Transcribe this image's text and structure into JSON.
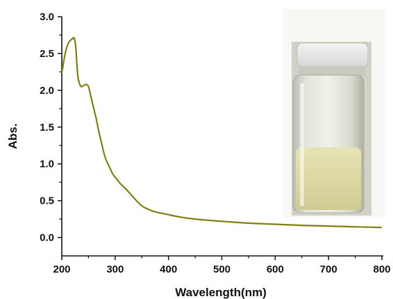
{
  "chart_data": {
    "type": "line",
    "title": "",
    "xlabel": "Wavelength(nm)",
    "ylabel": "Abs.",
    "xlim": [
      200,
      800
    ],
    "ylim": [
      -0.25,
      3.0
    ],
    "x_ticks": [
      "200",
      "300",
      "400",
      "500",
      "600",
      "700",
      "800"
    ],
    "y_ticks": [
      "0.0",
      "0.5",
      "1.0",
      "1.5",
      "2.0",
      "2.5",
      "3.0"
    ],
    "grid": false,
    "legend": "none",
    "line_color": "#7f7f0f",
    "inset": "photo of glass vial with pale yellow solution, top-right",
    "series": [
      {
        "x": [
          200,
          205,
          210,
          215,
          220,
          223,
          226,
          230,
          235,
          240,
          245,
          250,
          255,
          260,
          265,
          270,
          275,
          280,
          285,
          290,
          295,
          300,
          310,
          320,
          330,
          340,
          350,
          360,
          370,
          380,
          400,
          420,
          450,
          500,
          550,
          600,
          650,
          700,
          750,
          800
        ],
        "y": [
          2.23,
          2.45,
          2.6,
          2.67,
          2.7,
          2.71,
          2.6,
          2.2,
          2.06,
          2.06,
          2.08,
          2.05,
          1.9,
          1.75,
          1.6,
          1.42,
          1.27,
          1.12,
          1.02,
          0.95,
          0.87,
          0.82,
          0.73,
          0.66,
          0.58,
          0.5,
          0.43,
          0.39,
          0.36,
          0.34,
          0.31,
          0.28,
          0.25,
          0.22,
          0.195,
          0.18,
          0.165,
          0.155,
          0.145,
          0.135
        ]
      }
    ]
  }
}
